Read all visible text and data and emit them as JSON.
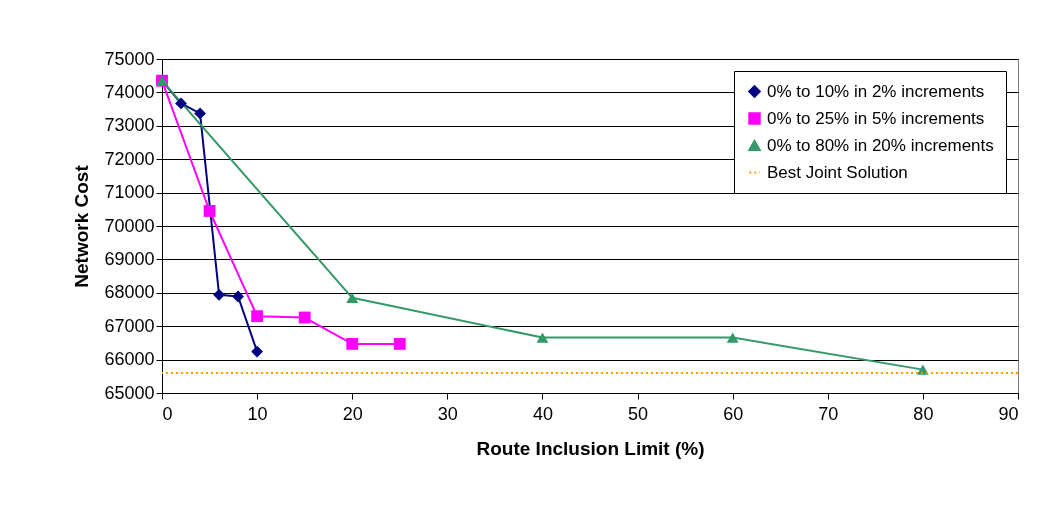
{
  "chart_data": {
    "type": "line",
    "xlabel": "Route Inclusion Limit (%)",
    "ylabel": "Network Cost",
    "xlim": [
      0,
      90
    ],
    "xticks": [
      0,
      10,
      20,
      30,
      40,
      50,
      60,
      70,
      80,
      90
    ],
    "ylim": [
      65000,
      75000
    ],
    "yticks": [
      65000,
      66000,
      67000,
      68000,
      69000,
      70000,
      71000,
      72000,
      73000,
      74000,
      75000
    ],
    "grid": "y",
    "legend": "top right",
    "line_style": "solid",
    "series": [
      {
        "name": "0% to 10% in 2% increments",
        "color": "#000080",
        "marker": "diamond",
        "x": [
          0,
          2,
          4,
          6,
          8,
          10
        ],
        "values": [
          74350,
          73670,
          73370,
          67940,
          67890,
          66240
        ]
      },
      {
        "name": "0% to 25% in 5% increments",
        "color": "#ff00ff",
        "marker": "square",
        "x": [
          0,
          5,
          10,
          15,
          20,
          25
        ],
        "values": [
          74350,
          70450,
          67300,
          67260,
          66470,
          66470
        ]
      },
      {
        "name": "0% to 80% in 20% increments",
        "color": "#339966",
        "marker": "triangle",
        "x": [
          0,
          20,
          40,
          60,
          80
        ],
        "values": [
          74350,
          67850,
          66660,
          66660,
          65700
        ]
      }
    ],
    "ref_lines": [
      {
        "axis": "y",
        "value": 65600,
        "label": "Best Joint Solution",
        "color": "#ff9900",
        "line_style": "dotted"
      }
    ]
  }
}
